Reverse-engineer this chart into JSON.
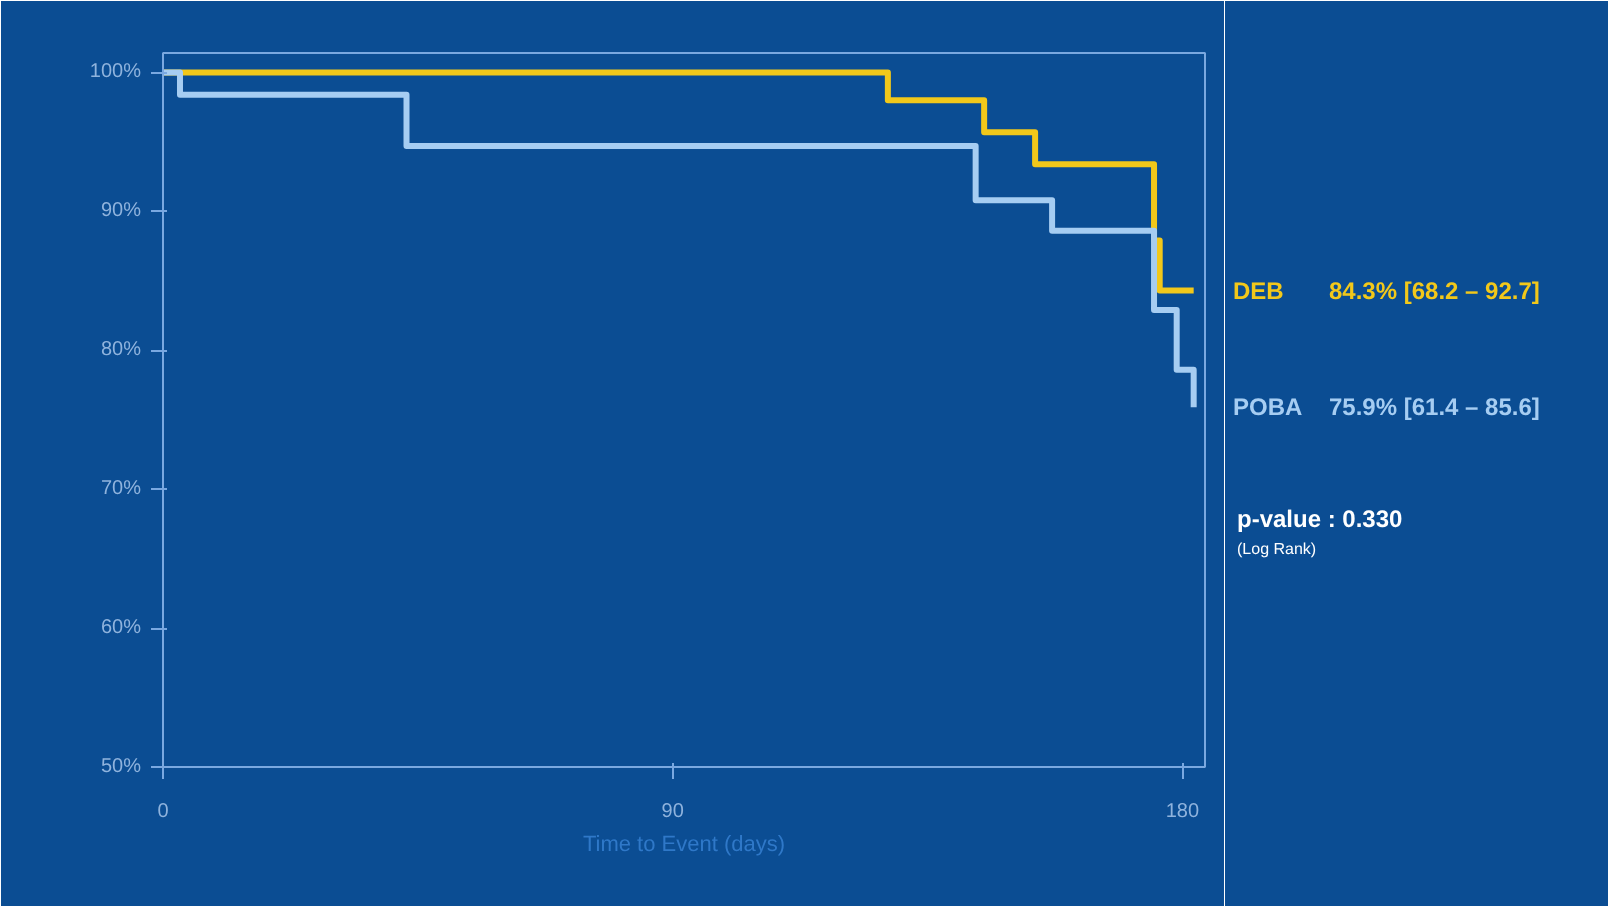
{
  "chart_data": {
    "type": "step",
    "xlabel": "Time to Event (days)",
    "xlim": [
      0,
      184
    ],
    "ylim": [
      50,
      101.4
    ],
    "xticks": [
      0,
      90,
      180
    ],
    "yticks": [
      {
        "value": 50,
        "label": "50%"
      },
      {
        "value": 60,
        "label": "60%"
      },
      {
        "value": 70,
        "label": "70%"
      },
      {
        "value": 80,
        "label": "80%"
      },
      {
        "value": 90,
        "label": "90%"
      },
      {
        "value": 100,
        "label": "100%"
      }
    ],
    "grid": false,
    "line_style": "solid",
    "series": [
      {
        "name": "DEB",
        "color": "#f2c81a",
        "x": [
          0,
          128,
          145,
          154,
          175,
          176,
          182
        ],
        "values": [
          100,
          98,
          95.7,
          93.4,
          87.9,
          84.3,
          84.3
        ]
      },
      {
        "name": "POBA",
        "color": "#a6cdf2",
        "x": [
          0,
          3,
          43,
          143.5,
          157,
          175,
          179,
          182
        ],
        "values": [
          100,
          98.4,
          94.7,
          90.8,
          88.6,
          82.9,
          78.6,
          75.9
        ]
      }
    ],
    "annotations": [
      "84.3% [68.2 – 92.7]",
      "75.9% [61.4 – 85.6]",
      "p-value : 0.330",
      "(Log Rank)"
    ]
  }
}
